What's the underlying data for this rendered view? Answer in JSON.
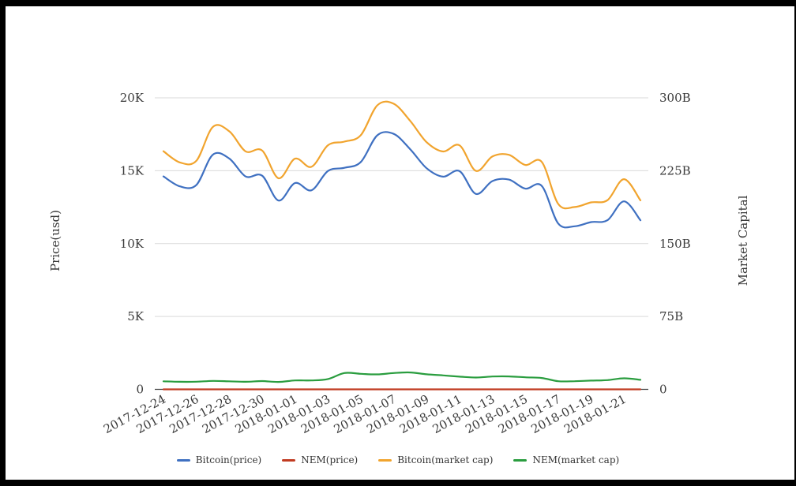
{
  "page": {
    "background_color": "#ffffff",
    "frame_color": "#000000"
  },
  "chart_data": {
    "type": "line",
    "title": "",
    "grid": true,
    "legend_position": "bottom",
    "x": [
      "2017-12-24",
      "2017-12-25",
      "2017-12-26",
      "2017-12-27",
      "2017-12-28",
      "2017-12-29",
      "2017-12-30",
      "2017-12-31",
      "2018-01-01",
      "2018-01-02",
      "2018-01-03",
      "2018-01-04",
      "2018-01-05",
      "2018-01-06",
      "2018-01-07",
      "2018-01-08",
      "2018-01-09",
      "2018-01-10",
      "2018-01-11",
      "2018-01-12",
      "2018-01-13",
      "2018-01-14",
      "2018-01-15",
      "2018-01-16",
      "2018-01-17",
      "2018-01-18",
      "2018-01-19",
      "2018-01-20",
      "2018-01-21",
      "2018-01-22"
    ],
    "x_label_every": 2,
    "left_axis": {
      "label": "Price(usd)",
      "ticks": [
        "0",
        "5K",
        "10K",
        "15K",
        "20K"
      ],
      "tick_values": [
        0,
        5000,
        10000,
        15000,
        20000
      ],
      "range": [
        0,
        20000
      ]
    },
    "right_axis": {
      "label": "Market Capital",
      "ticks": [
        "0",
        "75B",
        "150B",
        "225B",
        "300B"
      ],
      "tick_values": [
        0,
        75,
        150,
        225,
        300
      ],
      "range": [
        0,
        300
      ],
      "unit": "billion USD"
    },
    "series": [
      {
        "name": "Bitcoin(price)",
        "axis": "left",
        "color": "#3f70c1",
        "values": [
          14608,
          13925,
          14026,
          16099,
          15838,
          14606,
          14656,
          12952,
          14156,
          13657,
          14982,
          15201,
          15599,
          17429,
          17527,
          16477,
          15170,
          14595,
          14973,
          13405,
          14291,
          14392,
          13768,
          13960,
          11378,
          11188,
          11474,
          11607,
          12899,
          11600
        ]
      },
      {
        "name": "NEM(price)",
        "axis": "left",
        "color": "#c13b21",
        "values": [
          0.92,
          0.87,
          0.88,
          0.97,
          0.92,
          0.87,
          0.94,
          0.84,
          1.02,
          1.02,
          1.18,
          1.87,
          1.78,
          1.71,
          1.87,
          1.93,
          1.72,
          1.6,
          1.45,
          1.35,
          1.47,
          1.48,
          1.38,
          1.3,
          0.93,
          0.93,
          1.0,
          1.06,
          1.27,
          1.09
        ]
      },
      {
        "name": "Bitcoin(market cap)",
        "axis": "right",
        "color": "#f1a42e",
        "values": [
          245.0,
          233.5,
          235.2,
          270.0,
          265.6,
          244.9,
          245.8,
          217.2,
          237.4,
          229.0,
          251.2,
          254.9,
          261.6,
          292.3,
          293.9,
          276.3,
          254.4,
          244.8,
          251.1,
          224.8,
          239.7,
          241.4,
          230.9,
          234.1,
          190.8,
          187.6,
          192.4,
          194.7,
          216.3,
          194.5
        ]
      },
      {
        "name": "NEM(market cap)",
        "axis": "right",
        "color": "#2a9d3f",
        "values": [
          8.3,
          7.8,
          7.9,
          8.7,
          8.3,
          7.8,
          8.5,
          7.6,
          9.2,
          9.2,
          10.6,
          16.8,
          16.0,
          15.4,
          16.8,
          17.4,
          15.5,
          14.4,
          13.1,
          12.2,
          13.2,
          13.3,
          12.4,
          11.7,
          8.4,
          8.4,
          9.0,
          9.5,
          11.4,
          9.8
        ]
      }
    ],
    "style": {
      "gridline_color": "#d9d9d9",
      "baseline_color": "#444444",
      "tick_label_color": "#3a3a3a",
      "x_label_rotation_deg": -28
    }
  }
}
